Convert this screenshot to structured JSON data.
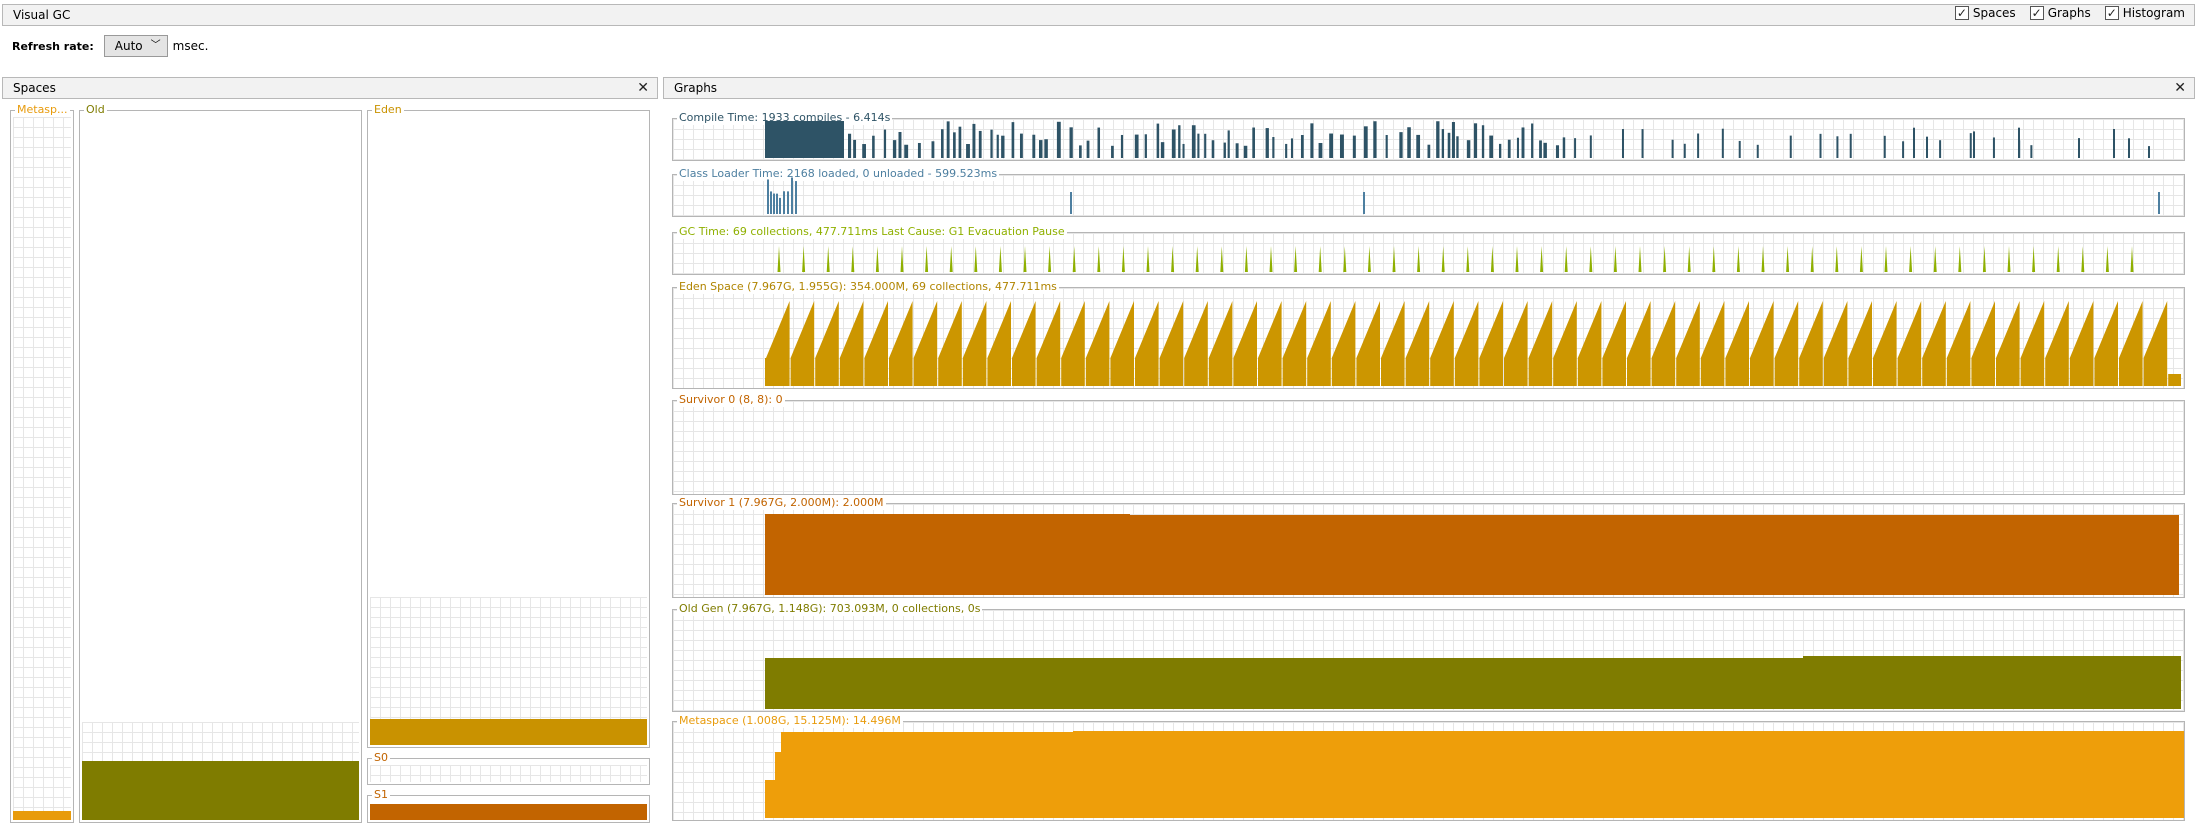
{
  "window": {
    "title": "Visual GC"
  },
  "views": [
    {
      "label": "Spaces",
      "checked": true
    },
    {
      "label": "Graphs",
      "checked": true
    },
    {
      "label": "Histogram",
      "checked": true
    }
  ],
  "refresh": {
    "label": "Refresh rate:",
    "value": "Auto",
    "unit": "msec."
  },
  "spaces": {
    "title": "Spaces",
    "metaspace": {
      "label": "Metasp...",
      "fraction": 0.015,
      "color": "#e89b0c"
    },
    "old": {
      "label": "Old",
      "fraction": 0.085,
      "color": "#7f7c00"
    },
    "eden": {
      "label": "Eden",
      "fraction": 0.045,
      "color": "#c99200"
    },
    "s0": {
      "label": "S0",
      "fraction": 0.0,
      "color": "#c26400"
    },
    "s1": {
      "label": "S1",
      "fraction": 1.0,
      "color": "#c26400"
    }
  },
  "graphs": {
    "title": "Graphs",
    "compile": {
      "title": "Compile Time: 1933 compiles - 6.414s",
      "color": "#2e5366"
    },
    "classloader": {
      "title": "Class Loader Time: 2168 loaded, 0 unloaded - 599.523ms",
      "color": "#4d7fa0"
    },
    "gc": {
      "title": "GC Time: 69 collections, 477.711ms Last Cause: G1 Evacuation Pause",
      "color": "#8fb000"
    },
    "eden": {
      "title": "Eden Space (7.967G, 1.955G): 354.000M, 69 collections, 477.711ms",
      "color": "#cc9600"
    },
    "survivor0": {
      "title": "Survivor 0 (8, 8): 0",
      "color": "#c26400"
    },
    "survivor1": {
      "title": "Survivor 1 (7.967G, 2.000M): 2.000M",
      "color": "#c26400"
    },
    "oldgen": {
      "title": "Old Gen (7.967G, 1.148G): 703.093M, 0 collections, 0s",
      "color": "#7f7c00"
    },
    "metaspace": {
      "title": "Metaspace (1.008G, 15.125M): 14.496M",
      "color": "#ee9e0a"
    }
  }
}
